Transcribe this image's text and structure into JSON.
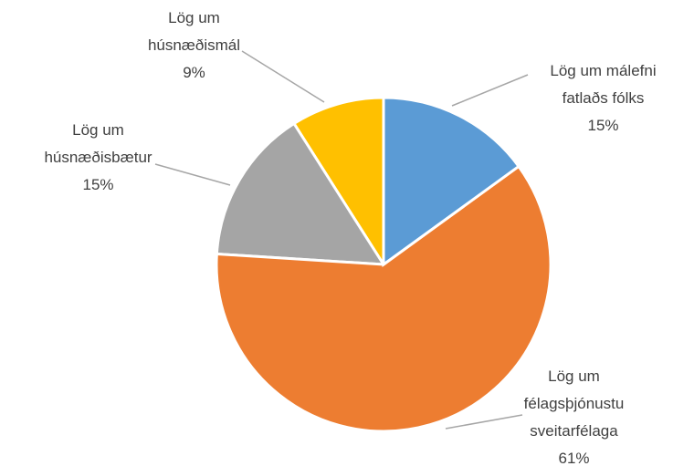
{
  "chart_data": {
    "type": "pie",
    "categories": [
      "Lög um málefni fatlaðs fólks",
      "Lög um félagsþjónustu sveitarfélaga",
      "Lög um húsnæðisbætur",
      "Lög um húsnæðismál"
    ],
    "values": [
      15,
      61,
      15,
      9
    ],
    "value_labels": [
      "15%",
      "61%",
      "15%",
      "9%"
    ],
    "colors": [
      "#5b9bd5",
      "#ed7d31",
      "#a5a5a5",
      "#ffc000"
    ]
  }
}
